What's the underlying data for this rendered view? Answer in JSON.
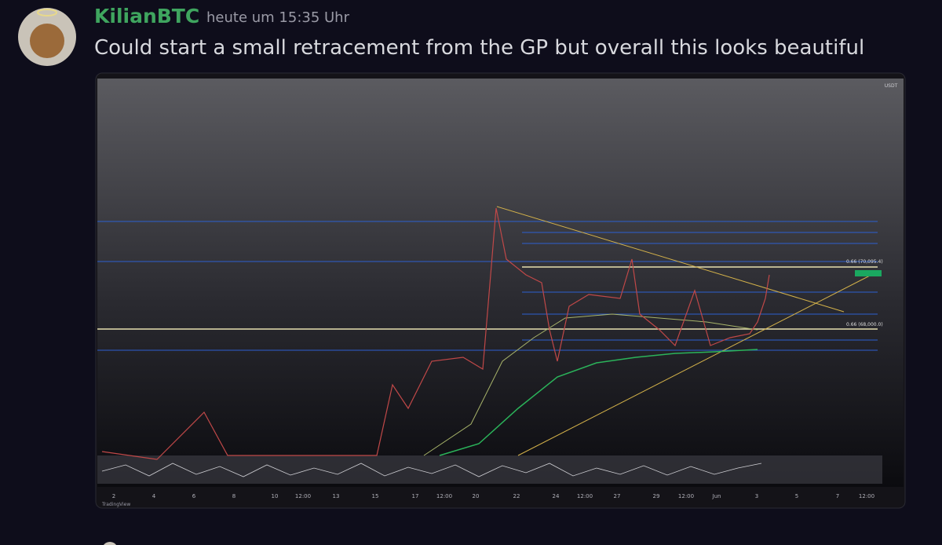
{
  "message": {
    "author": "KilianBTC",
    "timestamp": "heute um 15:35 Uhr",
    "text": "Could start a small retracement from the GP but overall this looks beautiful"
  },
  "chart_image": {
    "currency": "USDT",
    "fib_labels": [
      "0.66 (70,095.4)",
      "0.66 (68,000.0)"
    ],
    "x_axis_labels": [
      "2",
      "4",
      "6",
      "8",
      "10",
      "12:00",
      "13",
      "15",
      "17",
      "12:00",
      "20",
      "22",
      "24",
      "12:00",
      "27",
      "29",
      "12:00",
      "Jun",
      "3",
      "5",
      "7",
      "12:00"
    ],
    "watermark": "TradingView"
  }
}
